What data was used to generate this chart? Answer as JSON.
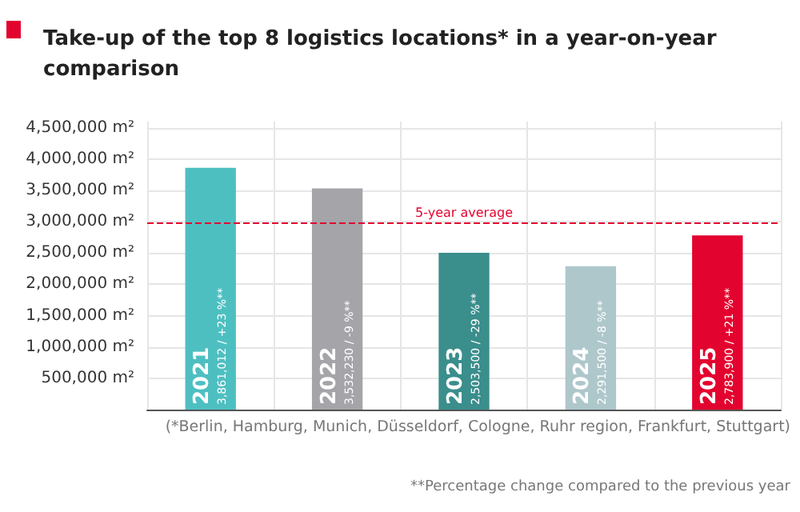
{
  "chart_data": {
    "type": "bar",
    "title": "Take-up of the top 8 logistics locations* in a year-on-year comparison",
    "categories": [
      "2021",
      "2022",
      "2023",
      "2024",
      "2025"
    ],
    "values": [
      3861012,
      3532230,
      2503500,
      2291500,
      2783900
    ],
    "colors": [
      "#4ebfc1",
      "#a5a4a9",
      "#3a8e8c",
      "#aec7cb",
      "#e3032f"
    ],
    "value_labels": [
      "3,861,012 / +23 %**",
      "3,532,230 / -9 %**",
      "2,503,500 / -29 %**",
      "2,291,500 / -8 %**",
      "2,783,900 / +21 %**"
    ],
    "ylim": [
      0,
      4600000
    ],
    "yticks": [
      {
        "value": 500000,
        "label": "500,000 m²"
      },
      {
        "value": 1000000,
        "label": "1,000,000 m²"
      },
      {
        "value": 1500000,
        "label": "1,500,000 m²"
      },
      {
        "value": 2000000,
        "label": "2,000,000 m²"
      },
      {
        "value": 2500000,
        "label": "2,500,000 m²"
      },
      {
        "value": 3000000,
        "label": "3,000,000 m²"
      },
      {
        "value": 3500000,
        "label": "3,500,000 m²"
      },
      {
        "value": 4000000,
        "label": "4,000,000 m²"
      },
      {
        "value": 4500000,
        "label": "4,500,000 m²"
      }
    ],
    "grid": true,
    "ref_lines": [
      {
        "axis": "y",
        "value": 2994000,
        "label": "5-year average",
        "color": "#e3032f",
        "line_style": "dashed"
      }
    ],
    "annotations": [
      "(*Berlin, Hamburg, Munich, Düsseldorf, Cologne, Ruhr region, Frankfurt, Stuttgart)",
      "**Percentage change compared to the previous year"
    ]
  }
}
